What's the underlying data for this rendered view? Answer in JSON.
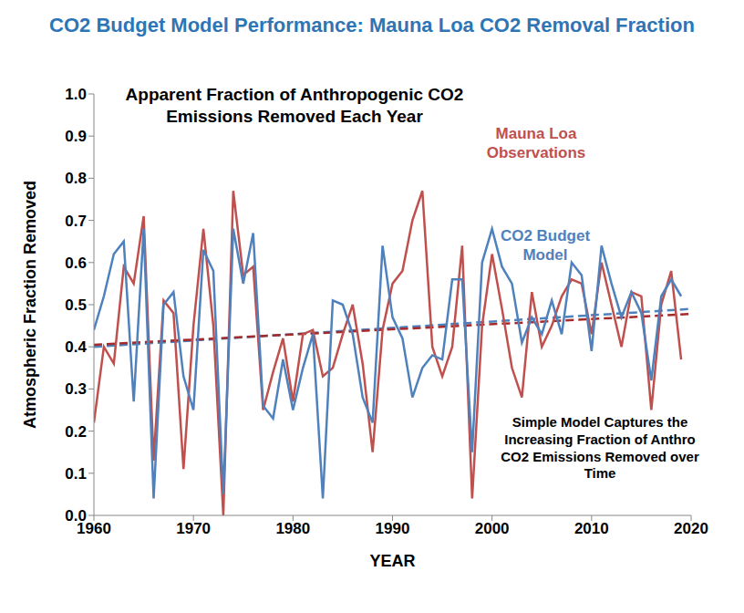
{
  "chart_data": {
    "type": "line",
    "title": "CO2 Budget Model Performance: Mauna Loa CO2 Removal Fraction",
    "subtitle": "Apparent Fraction of Anthropogenic CO2 Emissions Removed Each Year",
    "x_label": "YEAR",
    "y_label": "Atmospheric Fraction Removed",
    "x": [
      1960,
      1961,
      1962,
      1963,
      1964,
      1965,
      1966,
      1967,
      1968,
      1969,
      1970,
      1971,
      1972,
      1973,
      1974,
      1975,
      1976,
      1977,
      1978,
      1979,
      1980,
      1981,
      1982,
      1983,
      1984,
      1985,
      1986,
      1987,
      1988,
      1989,
      1990,
      1991,
      1992,
      1993,
      1994,
      1995,
      1996,
      1997,
      1998,
      1999,
      2000,
      2001,
      2002,
      2003,
      2004,
      2005,
      2006,
      2007,
      2008,
      2009,
      2010,
      2011,
      2012,
      2013,
      2014,
      2015,
      2016,
      2017,
      2018,
      2019
    ],
    "series": [
      {
        "name": "Mauna Loa Observations",
        "color": "#c0504d",
        "line_style": "solid",
        "values": [
          0.22,
          0.4,
          0.36,
          0.59,
          0.55,
          0.71,
          0.13,
          0.51,
          0.48,
          0.11,
          0.45,
          0.68,
          0.45,
          0.0,
          0.77,
          0.57,
          0.59,
          0.25,
          0.34,
          0.42,
          0.27,
          0.43,
          0.44,
          0.33,
          0.35,
          0.43,
          0.5,
          0.36,
          0.15,
          0.44,
          0.55,
          0.58,
          0.7,
          0.77,
          0.4,
          0.33,
          0.4,
          0.64,
          0.04,
          0.45,
          0.62,
          0.49,
          0.35,
          0.28,
          0.53,
          0.4,
          0.45,
          0.52,
          0.56,
          0.55,
          0.43,
          0.6,
          0.5,
          0.4,
          0.53,
          0.52,
          0.25,
          0.5,
          0.58,
          0.37
        ]
      },
      {
        "name": "CO2 Budget Model",
        "color": "#4f81bd",
        "line_style": "solid",
        "values": [
          0.44,
          0.52,
          0.62,
          0.65,
          0.27,
          0.68,
          0.04,
          0.5,
          0.53,
          0.33,
          0.25,
          0.63,
          0.58,
          0.05,
          0.68,
          0.55,
          0.67,
          0.26,
          0.23,
          0.37,
          0.25,
          0.35,
          0.43,
          0.04,
          0.51,
          0.5,
          0.43,
          0.28,
          0.22,
          0.64,
          0.47,
          0.42,
          0.28,
          0.35,
          0.38,
          0.37,
          0.56,
          0.56,
          0.15,
          0.6,
          0.68,
          0.59,
          0.55,
          0.41,
          0.47,
          0.43,
          0.51,
          0.43,
          0.6,
          0.57,
          0.39,
          0.64,
          0.55,
          0.47,
          0.53,
          0.48,
          0.32,
          0.52,
          0.56,
          0.52
        ]
      }
    ],
    "trend_lines": [
      {
        "color": "#4f81bd",
        "line_style": "dashed",
        "x": [
          1960,
          2020
        ],
        "values": [
          0.4,
          0.49
        ]
      },
      {
        "color": "#a52a2a",
        "line_style": "dashed",
        "x": [
          1960,
          2020
        ],
        "values": [
          0.405,
          0.478
        ]
      }
    ],
    "annotations": [
      {
        "text": "Mauna Loa Observations",
        "color": "#c0504d"
      },
      {
        "text": "CO2 Budget Model",
        "color": "#4f81bd"
      },
      {
        "text": "Simple Model Captures the Increasing Fraction of Anthro CO2 Emissions Removed over Time",
        "color": "#000000"
      }
    ],
    "xlim": [
      1960,
      2020
    ],
    "xticks": [
      1960,
      1970,
      1980,
      1990,
      2000,
      2010,
      2020
    ],
    "ylim": [
      0,
      1
    ],
    "yticks": [
      {
        "value": 0,
        "label": "0.0"
      },
      {
        "value": 0.1,
        "label": "0.1"
      },
      {
        "value": 0.2,
        "label": "0.2"
      },
      {
        "value": 0.3,
        "label": "0.3"
      },
      {
        "value": 0.4,
        "label": "0.4"
      },
      {
        "value": 0.5,
        "label": "0.5"
      },
      {
        "value": 0.6,
        "label": "0.6"
      },
      {
        "value": 0.7,
        "label": "0.7"
      },
      {
        "value": 0.8,
        "label": "0.8"
      },
      {
        "value": 0.9,
        "label": "0.9"
      },
      {
        "value": 1,
        "label": "1.0"
      }
    ],
    "grid": false,
    "title_color": "#2e75b6"
  }
}
